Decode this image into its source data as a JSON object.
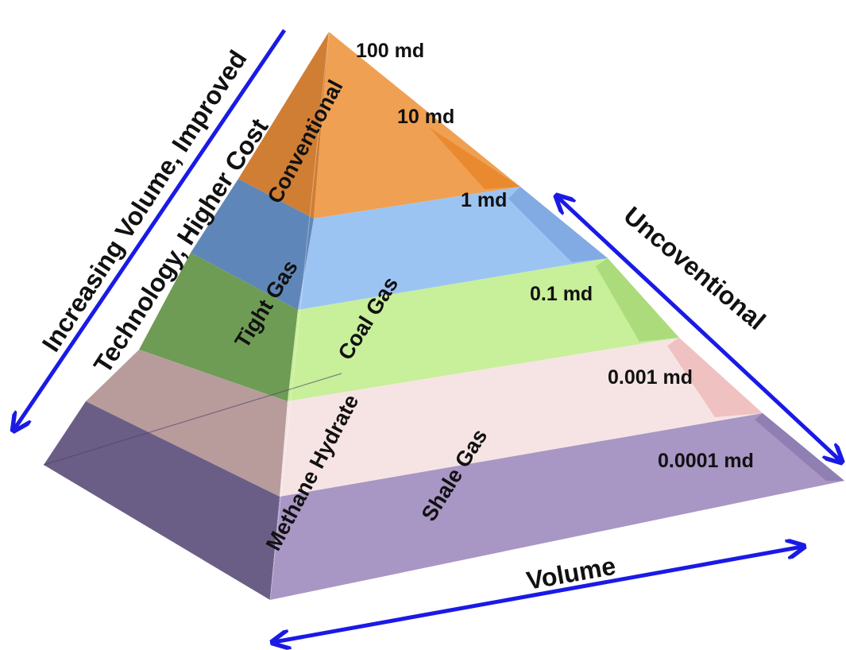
{
  "layers": {
    "conventional": {
      "label": "Conventional",
      "color": "#f0a052"
    },
    "tight_gas": {
      "label": "Tight Gas",
      "color": "#8ab4e8"
    },
    "coal_gas": {
      "label": "Coal Gas",
      "color": "#c8ef9a"
    },
    "methane_hydrate": {
      "label": "Methane Hydrate",
      "color": "#f6dada"
    },
    "shale_gas": {
      "label": "Shale Gas",
      "color": "#a896c4"
    }
  },
  "permeability": {
    "p100": "100 md",
    "p10": "10 md",
    "p1": "1 md",
    "p01": "0.1 md",
    "p0001": "0.001 md",
    "p00001": "0.0001 md"
  },
  "axes": {
    "left_line1": "Increasing Volume, Improved",
    "left_line2": "Technology, Higher Cost",
    "right": "Uncoventional",
    "bottom": "Volume"
  },
  "arrow_color": "#1a1ae6"
}
